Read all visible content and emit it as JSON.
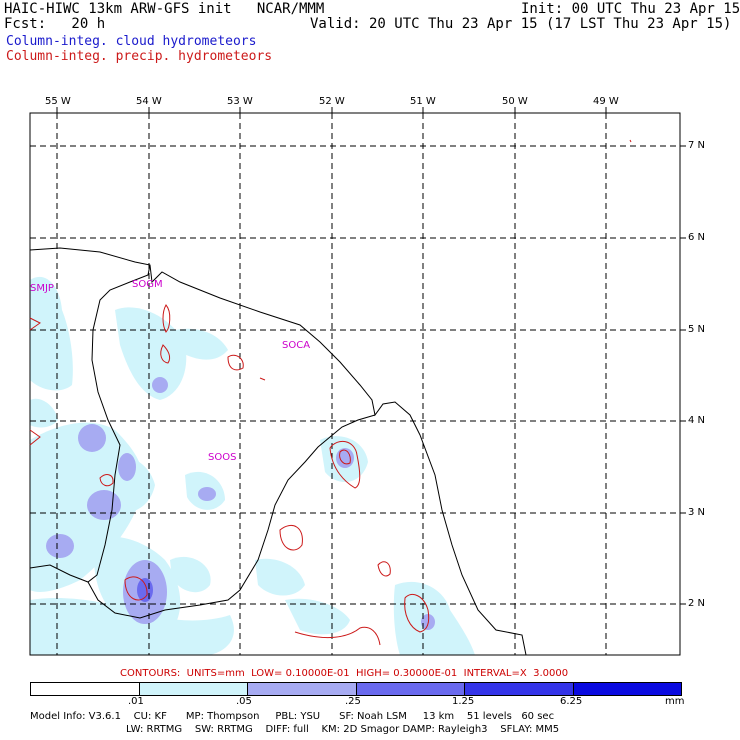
{
  "header": {
    "title_left": "HAIC-HIWC 13km ARW-GFS init   NCAR/MMM",
    "fcst": "Fcst:   20 h",
    "init": "Init: 00 UTC Thu 23 Apr 15",
    "valid": "Valid: 20 UTC Thu 23 Apr 15 (17 LST Thu 23 Apr 15)"
  },
  "legend": {
    "cloud": "Column-integ. cloud hydrometeors",
    "precip": "Column-integ. precip. hydrometeors",
    "cloud_color": "#1a1acc",
    "precip_color": "#cc1a1a"
  },
  "map": {
    "lon_labels": [
      "55 W",
      "54 W",
      "53 W",
      "52 W",
      "51 W",
      "50 W",
      "49 W"
    ],
    "lat_labels": [
      "7 N",
      "6 N",
      "5 N",
      "4 N",
      "3 N",
      "2 N"
    ],
    "sites": [
      "SMJP",
      "SOGM",
      "SOCA",
      "SOOS"
    ]
  },
  "contour_info": "CONTOURS:  UNITS=mm  LOW= 0.10000E-01  HIGH= 0.30000E-01  INTERVAL=X  3.0000",
  "colorbar": {
    "colors": [
      "#ffffff",
      "#d0f4fb",
      "#a7abf2",
      "#6a6aee",
      "#3434e8",
      "#0a0ae0"
    ],
    "labels": [
      ".01",
      ".05",
      ".25",
      "1.25",
      "6.25",
      "mm"
    ]
  },
  "model_info": {
    "line1": "Model Info: V3.6.1    CU: KF      MP: Thompson     PBL: YSU      SF: Noah LSM     13 km    51 levels   60 sec",
    "line2": "LW: RRTMG    SW: RRTMG    DIFF: full    KM: 2D Smagor DAMP: Rayleigh3    SFLAY: MM5"
  }
}
